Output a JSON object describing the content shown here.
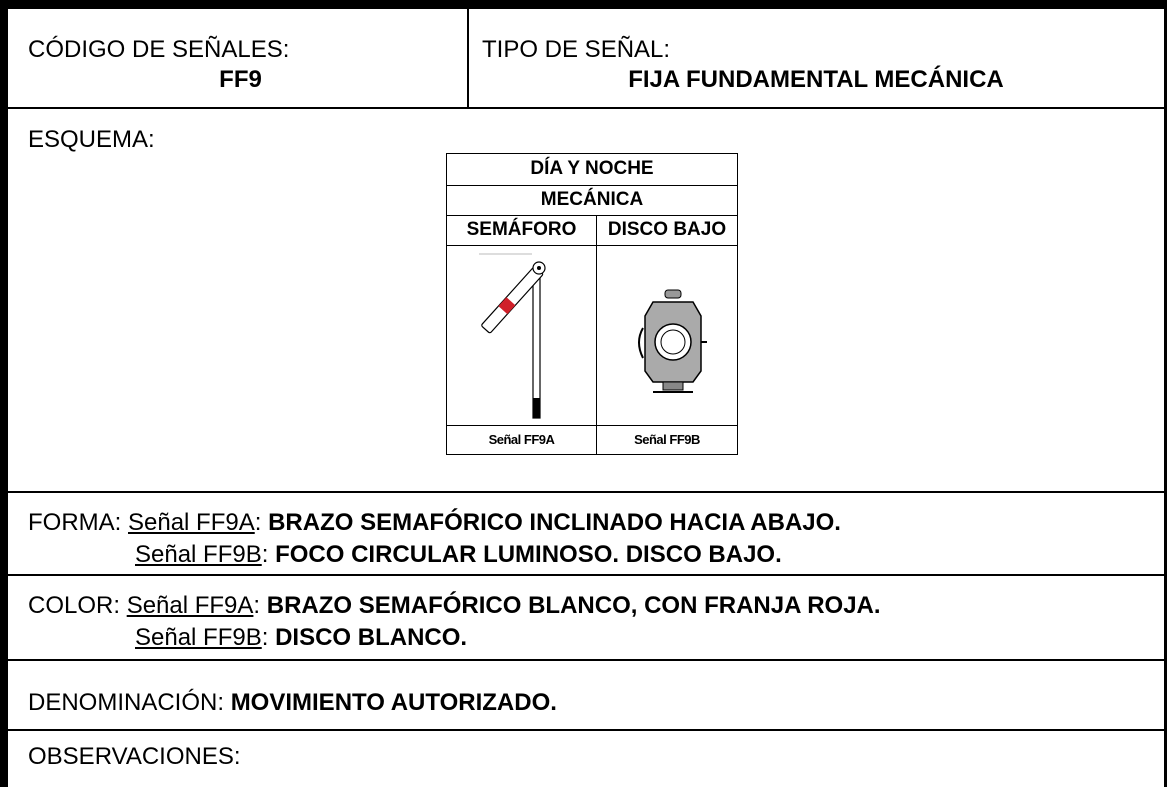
{
  "header": {
    "code_label": "CÓDIGO DE SEÑALES:",
    "code": "FF9",
    "type_label": "TIPO DE SEÑAL:",
    "type": "FIJA FUNDAMENTAL MECÁNICA"
  },
  "schema": {
    "label": "ESQUEMA:",
    "table": {
      "rows": [
        "DÍA Y NOCHE",
        "MECÁNICA"
      ],
      "columns": [
        "SEMÁFORO",
        "DISCO BAJO"
      ],
      "captions": [
        "Señal FF9A",
        "Señal FF9B"
      ]
    }
  },
  "separator": ":",
  "forma": {
    "label": "FORMA:",
    "items": [
      {
        "signal": "Señal FF9A",
        "text": "BRAZO SEMAFÓRICO INCLINADO HACIA ABAJO."
      },
      {
        "signal": "Señal FF9B",
        "text": "FOCO CIRCULAR LUMINOSO. DISCO BAJO."
      }
    ]
  },
  "color": {
    "label": "COLOR:",
    "items": [
      {
        "signal": "Señal FF9A",
        "text": "BRAZO SEMAFÓRICO BLANCO, CON FRANJA ROJA."
      },
      {
        "signal": "Señal FF9B",
        "text": "DISCO BLANCO."
      }
    ]
  },
  "denominacion": {
    "label": "DENOMINACIÓN:",
    "text": "MOVIMIENTO AUTORIZADO."
  },
  "observaciones": {
    "label": "OBSERVACIONES:"
  }
}
